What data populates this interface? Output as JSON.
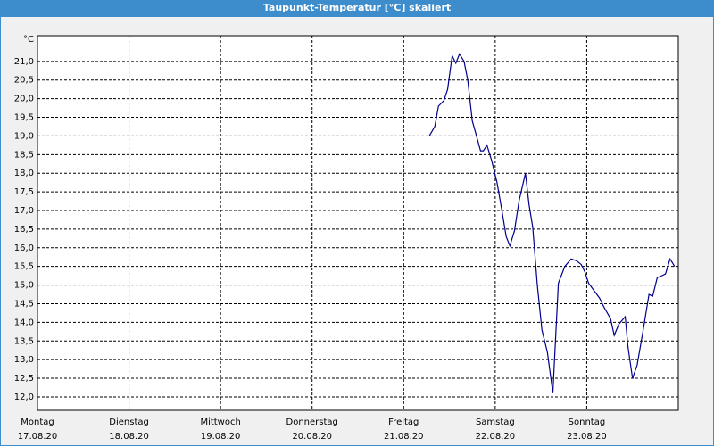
{
  "chart_data": {
    "type": "line",
    "title": "Taupunkt-Temperatur [°C] skaliert",
    "y_unit": "°C",
    "xlim": [
      0,
      7
    ],
    "xticks": [
      {
        "value": 0,
        "label": "Montag",
        "date": "17.08.20"
      },
      {
        "value": 1,
        "label": "Dienstag",
        "date": "18.08.20"
      },
      {
        "value": 2,
        "label": "Mittwoch",
        "date": "19.08.20"
      },
      {
        "value": 3,
        "label": "Donnerstag",
        "date": "20.08.20"
      },
      {
        "value": 4,
        "label": "Freitag",
        "date": "21.08.20"
      },
      {
        "value": 5,
        "label": "Samstag",
        "date": "22.08.20"
      },
      {
        "value": 6,
        "label": "Sonntag",
        "date": "23.08.20"
      }
    ],
    "ylim": [
      11.64,
      21.69
    ],
    "yticks": [
      {
        "value": 12.0,
        "label": "12,0"
      },
      {
        "value": 12.5,
        "label": "12,5"
      },
      {
        "value": 13.0,
        "label": "13,0"
      },
      {
        "value": 13.5,
        "label": "13,5"
      },
      {
        "value": 14.0,
        "label": "14,0"
      },
      {
        "value": 14.5,
        "label": "14,5"
      },
      {
        "value": 15.0,
        "label": "15,0"
      },
      {
        "value": 15.5,
        "label": "15,5"
      },
      {
        "value": 16.0,
        "label": "16,0"
      },
      {
        "value": 16.5,
        "label": "16,5"
      },
      {
        "value": 17.0,
        "label": "17,0"
      },
      {
        "value": 17.5,
        "label": "17,5"
      },
      {
        "value": 18.0,
        "label": "18,0"
      },
      {
        "value": 18.5,
        "label": "18,5"
      },
      {
        "value": 19.0,
        "label": "19,0"
      },
      {
        "value": 19.5,
        "label": "19,5"
      },
      {
        "value": 20.0,
        "label": "20,0"
      },
      {
        "value": 20.5,
        "label": "20,5"
      },
      {
        "value": 21.0,
        "label": "21,0"
      }
    ],
    "grid": true,
    "series": [
      {
        "color": "#00008b",
        "x": [
          4.28,
          4.34,
          4.38,
          4.44,
          4.48,
          4.53,
          4.57,
          4.61,
          4.66,
          4.7,
          4.75,
          4.79,
          4.84,
          4.87,
          4.91,
          4.96,
          5.02,
          5.08,
          5.12,
          5.16,
          5.21,
          5.26,
          5.33,
          5.37,
          5.41,
          5.46,
          5.51,
          5.57,
          5.63,
          5.65,
          5.69,
          5.76,
          5.83,
          5.89,
          5.94,
          5.98,
          6.02,
          6.08,
          6.14,
          6.19,
          6.26,
          6.3,
          6.35,
          6.42,
          6.45,
          6.5,
          6.55,
          6.61,
          6.68,
          6.72,
          6.77,
          6.82,
          6.86,
          6.91,
          6.96
        ],
        "values": [
          19.0,
          19.25,
          19.8,
          19.95,
          20.25,
          21.15,
          20.95,
          21.2,
          21.0,
          20.5,
          19.4,
          19.05,
          18.6,
          18.6,
          18.75,
          18.35,
          17.75,
          16.9,
          16.3,
          16.05,
          16.45,
          17.25,
          18.0,
          17.15,
          16.55,
          15.0,
          13.8,
          13.2,
          12.1,
          13.1,
          15.05,
          15.5,
          15.7,
          15.65,
          15.55,
          15.35,
          15.05,
          14.85,
          14.65,
          14.4,
          14.1,
          13.65,
          13.95,
          14.15,
          13.35,
          12.5,
          12.85,
          13.7,
          14.75,
          14.7,
          15.2,
          15.25,
          15.3,
          15.7,
          15.5
        ]
      }
    ]
  }
}
